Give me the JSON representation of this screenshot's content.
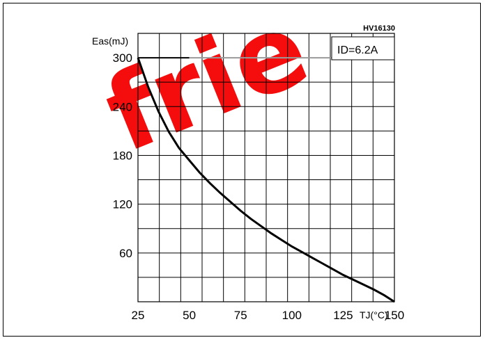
{
  "chart_data": {
    "type": "line",
    "title": "",
    "figure_code": "HV16130",
    "condition_label": "ID=6.2A",
    "xlabel": "TJ(°C)",
    "ylabel": "Eas(mJ)",
    "xlim": [
      25,
      150
    ],
    "ylim": [
      0,
      330
    ],
    "x_ticks": [
      25,
      50,
      75,
      100,
      125,
      150
    ],
    "y_ticks": [
      60,
      120,
      180,
      240,
      300
    ],
    "grid": true,
    "series": [
      {
        "x": [
          25,
          30,
          35,
          40,
          45,
          50,
          55,
          60,
          65,
          70,
          75,
          80,
          85,
          90,
          95,
          100,
          105,
          110,
          115,
          120,
          125,
          130,
          135,
          140,
          145,
          150
        ],
        "y": [
          300,
          264,
          234,
          209,
          189,
          174,
          159,
          146,
          134,
          123,
          112,
          102,
          93,
          84,
          76,
          68,
          61,
          54,
          47,
          40,
          33,
          27,
          21,
          15,
          8,
          0
        ]
      }
    ],
    "reference_line": {
      "y": 300,
      "x": [
        25,
        150
      ]
    },
    "colors": {
      "curve": "#000000",
      "grid": "#000000",
      "reference": "#9a9a9a",
      "watermark": "#f50000"
    }
  },
  "watermark_text": "frie"
}
